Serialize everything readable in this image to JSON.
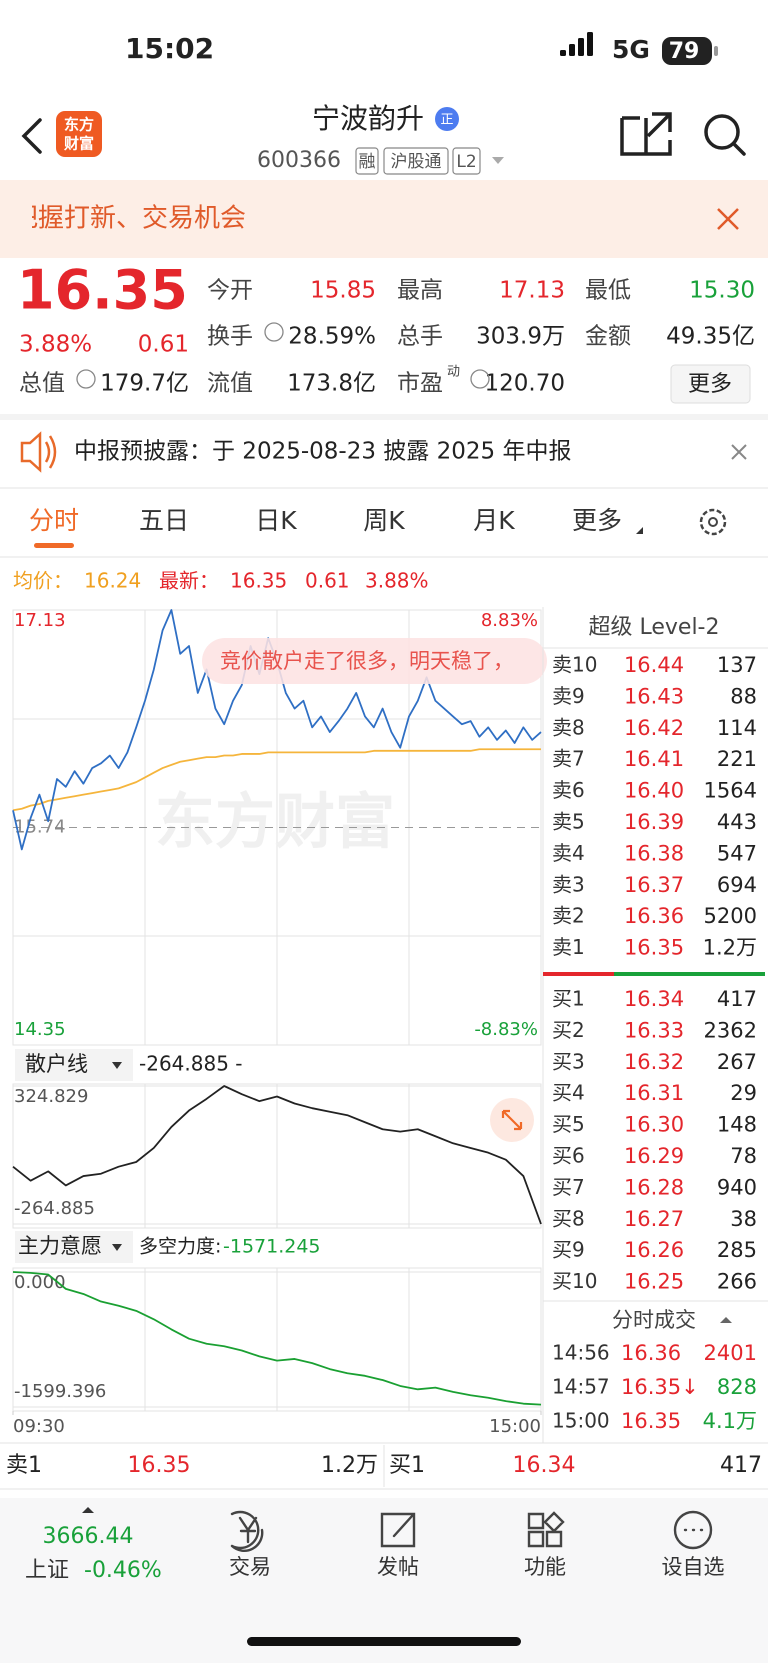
{
  "status_bar": {
    "time": "15:02",
    "network": "5G",
    "battery": "79"
  },
  "header": {
    "logo": [
      "东方",
      "财富"
    ],
    "name": "宁波韵升",
    "badge": "正",
    "code": "600366",
    "tags": [
      "融",
      "沪股通",
      "L2"
    ]
  },
  "banner": {
    "text": "把握打新、交易机会"
  },
  "quote": {
    "price": "16.35",
    "change_pct": "3.88%",
    "change": "0.61",
    "more": "更多",
    "stats": [
      {
        "label": "今开",
        "value": "15.85",
        "color": "#e4262c"
      },
      {
        "label": "最高",
        "value": "17.13",
        "color": "#e4262c"
      },
      {
        "label": "最低",
        "value": "15.30",
        "color": "#19a13a"
      },
      {
        "label": "换手",
        "value": "28.59%",
        "color": "#222222"
      },
      {
        "label": "总手",
        "value": "303.9万",
        "color": "#222222"
      },
      {
        "label": "金额",
        "value": "49.35亿",
        "color": "#222222"
      },
      {
        "label": "总值",
        "value": "179.7亿",
        "color": "#222222"
      },
      {
        "label": "流值",
        "value": "173.8亿",
        "color": "#222222"
      },
      {
        "label": "市盈",
        "sup": "动",
        "value": "120.70",
        "color": "#222222"
      }
    ]
  },
  "notice": {
    "text": "中报预披露：于 2025-08-23 披露 2025 年中报"
  },
  "tabs": [
    "分时",
    "五日",
    "日K",
    "周K",
    "月K",
    "更多"
  ],
  "chart_data": [
    {
      "type": "line",
      "info": {
        "avg": "16.24",
        "last": "16.35",
        "change": "0.61",
        "change_pct": "3.88%"
      },
      "annotation": "竞价散户走了很多，明天稳了，",
      "watermark": "东方财富",
      "xlim": [
        0,
        240
      ],
      "ylim": [
        14.35,
        17.13
      ],
      "yticks": [
        17.13,
        15.74,
        14.35
      ],
      "y2lim": [
        -8.83,
        8.83
      ],
      "y2ticks": [
        {
          "value": 8.83,
          "label": "8.83%"
        },
        {
          "value": -8.83,
          "label": "-8.83%"
        }
      ],
      "x": [
        0,
        4,
        8,
        12,
        16,
        20,
        24,
        28,
        32,
        36,
        40,
        44,
        48,
        52,
        56,
        60,
        64,
        68,
        72,
        76,
        80,
        84,
        88,
        92,
        96,
        100,
        104,
        108,
        112,
        116,
        120,
        124,
        128,
        132,
        136,
        140,
        144,
        148,
        152,
        156,
        160,
        164,
        168,
        172,
        176,
        180,
        184,
        188,
        192,
        196,
        200,
        204,
        208,
        212,
        216,
        220,
        224,
        228,
        232,
        236,
        240
      ],
      "series": [
        {
          "name": "最新：",
          "color": "#2f6fc4",
          "values": [
            15.85,
            15.6,
            15.8,
            15.95,
            15.78,
            16.05,
            16.0,
            16.1,
            16.02,
            16.12,
            16.15,
            16.2,
            16.12,
            16.22,
            16.38,
            16.55,
            16.75,
            17.0,
            17.13,
            16.85,
            16.9,
            16.6,
            16.75,
            16.5,
            16.4,
            16.55,
            16.65,
            16.9,
            16.72,
            16.95,
            16.8,
            16.6,
            16.5,
            16.55,
            16.38,
            16.45,
            16.35,
            16.42,
            16.5,
            16.6,
            16.45,
            16.38,
            16.5,
            16.35,
            16.25,
            16.45,
            16.55,
            16.7,
            16.55,
            16.5,
            16.45,
            16.4,
            16.42,
            16.32,
            16.38,
            16.3,
            16.36,
            16.28,
            16.38,
            16.3,
            16.35
          ]
        },
        {
          "name": "均价：",
          "color": "#f5b53c",
          "values": [
            15.85,
            15.86,
            15.88,
            15.89,
            15.91,
            15.92,
            15.93,
            15.94,
            15.95,
            15.96,
            15.97,
            15.98,
            15.99,
            16.01,
            16.03,
            16.06,
            16.09,
            16.12,
            16.14,
            16.16,
            16.17,
            16.18,
            16.19,
            16.19,
            16.2,
            16.2,
            16.21,
            16.21,
            16.21,
            16.22,
            16.22,
            16.22,
            16.22,
            16.22,
            16.22,
            16.22,
            16.22,
            16.22,
            16.22,
            16.22,
            16.22,
            16.23,
            16.23,
            16.23,
            16.23,
            16.23,
            16.23,
            16.23,
            16.23,
            16.23,
            16.23,
            16.23,
            16.23,
            16.24,
            16.24,
            16.24,
            16.24,
            16.24,
            16.24,
            16.24,
            16.24
          ]
        }
      ]
    },
    {
      "type": "line",
      "title": "散户线",
      "current": "-264.885 -",
      "xlim": [
        0,
        240
      ],
      "ylim": [
        -264.885,
        324.829
      ],
      "yticks": [
        324.829,
        -264.885
      ],
      "x": [
        0,
        8,
        16,
        24,
        32,
        40,
        48,
        56,
        64,
        72,
        80,
        88,
        96,
        104,
        112,
        120,
        128,
        136,
        144,
        152,
        160,
        168,
        176,
        184,
        192,
        200,
        208,
        216,
        224,
        232,
        240
      ],
      "series": [
        {
          "color": "#222222",
          "values": [
            -20,
            -80,
            -40,
            -100,
            -60,
            -50,
            -20,
            0,
            60,
            150,
            220,
            270,
            324.829,
            290,
            260,
            280,
            250,
            230,
            215,
            200,
            170,
            140,
            130,
            140,
            110,
            80,
            60,
            40,
            10,
            -60,
            -264.885
          ]
        }
      ]
    },
    {
      "type": "line",
      "title": "主力意愿",
      "subtitle": "多空力度:",
      "current": "-1571.245",
      "xlim": [
        0,
        240
      ],
      "ylim": [
        -1599.396,
        0
      ],
      "yticks": [
        {
          "value": 0,
          "label": "0.000"
        },
        -1599.396
      ],
      "xticks": [
        {
          "value": 0,
          "label": "09:30"
        },
        {
          "value": 240,
          "label": "15:00"
        }
      ],
      "x": [
        0,
        8,
        16,
        24,
        32,
        40,
        48,
        56,
        64,
        72,
        80,
        88,
        96,
        104,
        112,
        120,
        128,
        136,
        144,
        152,
        160,
        168,
        176,
        184,
        192,
        200,
        208,
        216,
        224,
        232,
        240
      ],
      "series": [
        {
          "color": "#1aa032",
          "values": [
            0,
            -10,
            -30,
            -200,
            -260,
            -350,
            -400,
            -460,
            -560,
            -680,
            -790,
            -850,
            -880,
            -930,
            -1000,
            -1050,
            -1030,
            -1080,
            -1150,
            -1200,
            -1230,
            -1280,
            -1350,
            -1390,
            -1370,
            -1420,
            -1460,
            -1490,
            -1530,
            -1560,
            -1571.245
          ]
        }
      ]
    }
  ],
  "order_book": {
    "title": "超级 Level-2",
    "asks": [
      {
        "label": "卖10",
        "price": "16.44",
        "volume": "137"
      },
      {
        "label": "卖9",
        "price": "16.43",
        "volume": "88"
      },
      {
        "label": "卖8",
        "price": "16.42",
        "volume": "114"
      },
      {
        "label": "卖7",
        "price": "16.41",
        "volume": "221"
      },
      {
        "label": "卖6",
        "price": "16.40",
        "volume": "1564"
      },
      {
        "label": "卖5",
        "price": "16.39",
        "volume": "443"
      },
      {
        "label": "卖4",
        "price": "16.38",
        "volume": "547"
      },
      {
        "label": "卖3",
        "price": "16.37",
        "volume": "694"
      },
      {
        "label": "卖2",
        "price": "16.36",
        "volume": "5200"
      },
      {
        "label": "卖1",
        "price": "16.35",
        "volume": "1.2万"
      }
    ],
    "bids": [
      {
        "label": "买1",
        "price": "16.34",
        "volume": "417"
      },
      {
        "label": "买2",
        "price": "16.33",
        "volume": "2362"
      },
      {
        "label": "买3",
        "price": "16.32",
        "volume": "267"
      },
      {
        "label": "买4",
        "price": "16.31",
        "volume": "29"
      },
      {
        "label": "买5",
        "price": "16.30",
        "volume": "148"
      },
      {
        "label": "买6",
        "price": "16.29",
        "volume": "78"
      },
      {
        "label": "买7",
        "price": "16.28",
        "volume": "940"
      },
      {
        "label": "买8",
        "price": "16.27",
        "volume": "38"
      },
      {
        "label": "买9",
        "price": "16.26",
        "volume": "285"
      },
      {
        "label": "买10",
        "price": "16.25",
        "volume": "266"
      }
    ]
  },
  "trades": {
    "title": "分时成交",
    "rows": [
      {
        "time": "14:56",
        "price": "16.36",
        "volume": "2401",
        "color": "#e4262c"
      },
      {
        "time": "14:57",
        "price": "16.35↓",
        "volume": "828",
        "color": "#19a13a"
      },
      {
        "time": "15:00",
        "price": "16.35",
        "volume": "4.1万",
        "color": "#19a13a"
      }
    ]
  },
  "bottom_quote": {
    "ask_label": "卖1",
    "ask_price": "16.35",
    "ask_volume": "1.2万",
    "bid_label": "买1",
    "bid_price": "16.34",
    "bid_volume": "417"
  },
  "nav": {
    "index_value": "3666.44",
    "index_name": "上证",
    "index_change": "-0.46%",
    "items": [
      "交易",
      "发帖",
      "功能",
      "设自选"
    ]
  }
}
